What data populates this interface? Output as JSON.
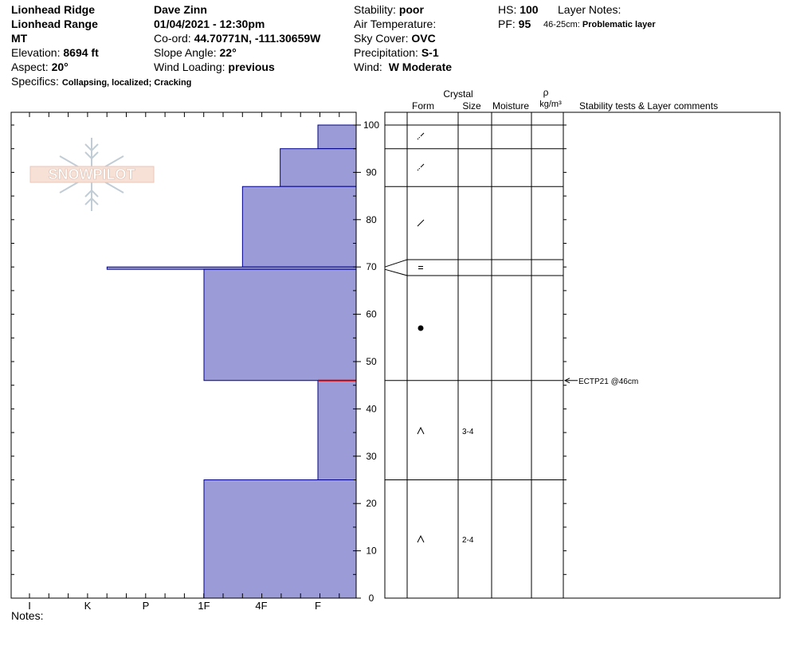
{
  "header": {
    "location": "Lionhead Ridge",
    "range": "Lionhead Range",
    "state": "MT",
    "elevation_label": "Elevation:",
    "elevation": "8694 ft",
    "aspect_label": "Aspect:",
    "aspect": "20°",
    "specifics_label": "Specifics:",
    "specifics": "Collapsing, localized; Cracking",
    "observer": "Dave Zinn",
    "datetime": "01/04/2021 - 12:30pm",
    "coord_label": "Co-ord:",
    "coord": "44.70771N, -111.30659W",
    "slope_label": "Slope Angle:",
    "slope": "22°",
    "wind_loading_label": "Wind Loading:",
    "wind_loading": "previous",
    "stability_label": "Stability:",
    "stability": "poor",
    "air_temp_label": "Air Temperature:",
    "air_temp": "",
    "sky_label": "Sky Cover:",
    "sky": "OVC",
    "precip_label": "Precipitation:",
    "precip": "S-1",
    "wind_label": "Wind:",
    "wind": "W Moderate",
    "hs_label": "HS:",
    "hs": "100",
    "pf_label": "PF:",
    "pf": "95",
    "layer_notes_label": "Layer Notes:",
    "layer_note_range": "46-25cm:",
    "layer_note_text": "Problematic layer"
  },
  "logo_text": "SNOWPILOT",
  "notes_label": "Notes:",
  "colors": {
    "fill": "#9b9bd8",
    "edge": "#00008b",
    "critical": "#cc0000"
  },
  "chart_data": {
    "type": "bar",
    "orientation": "horizontal",
    "ylim": [
      0,
      100
    ],
    "ytick_labels": [
      "0",
      "10",
      "20",
      "30",
      "40",
      "50",
      "60",
      "70",
      "80",
      "90",
      "100"
    ],
    "hardness_labels": [
      "I",
      "K",
      "P",
      "1F",
      "4F",
      "F"
    ],
    "hardness_profile": [
      {
        "top": 100,
        "bottom": 95,
        "hardness": "F"
      },
      {
        "top": 95,
        "bottom": 87,
        "hardness": "4F-"
      },
      {
        "top": 87,
        "bottom": 70,
        "hardness": "4F+"
      },
      {
        "top": 70,
        "bottom": 69.5,
        "hardness": "K-"
      },
      {
        "top": 69.5,
        "bottom": 46,
        "hardness": "1F"
      },
      {
        "top": 46,
        "bottom": 25,
        "hardness": "F"
      },
      {
        "top": 25,
        "bottom": 0,
        "hardness": "1F"
      }
    ],
    "critical_depth": 46,
    "column_headers": {
      "crystal": "Crystal",
      "form": "Form",
      "size": "Size",
      "moisture": "Moisture",
      "rho": "ρ",
      "density_unit": "kg/m³",
      "comments": "Stability tests & Layer comments"
    },
    "layers": [
      {
        "top": 100,
        "bottom": 95,
        "form": "decomposing",
        "size": ""
      },
      {
        "top": 95,
        "bottom": 87,
        "form": "decomposing",
        "size": ""
      },
      {
        "top": 87,
        "bottom": 71.5,
        "form": "rounded-faceted",
        "size": ""
      },
      {
        "top": 71.5,
        "bottom": 68,
        "form": "faceted",
        "size": ""
      },
      {
        "top": 68,
        "bottom": 46,
        "form": "rounded",
        "size": ""
      },
      {
        "top": 46,
        "bottom": 25,
        "form": "depth-hoar",
        "size": "3-4"
      },
      {
        "top": 25,
        "bottom": 0,
        "form": "depth-hoar",
        "size": "2-4"
      }
    ],
    "stability_tests": [
      {
        "depth": 46,
        "text": "ECTP21 @46cm"
      }
    ]
  }
}
